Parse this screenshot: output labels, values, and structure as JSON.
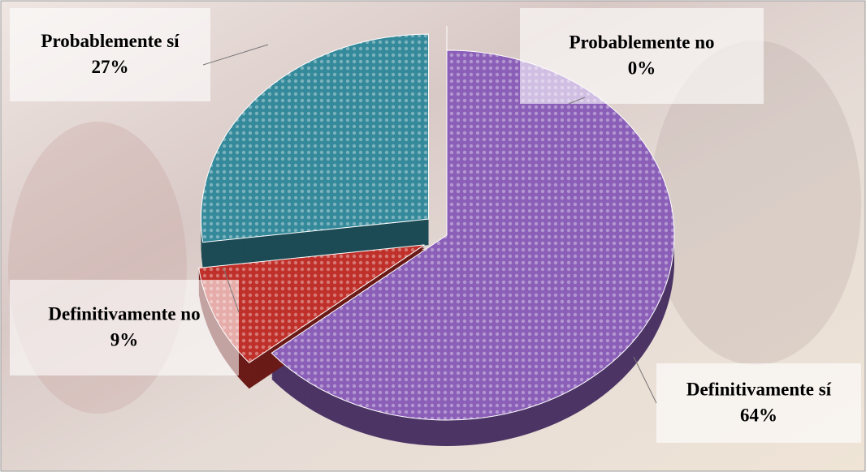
{
  "chart_data": {
    "type": "pie",
    "categories": [
      "Definitivamente sí",
      "Definitivamente no",
      "Probablemente sí",
      "Probablemente no"
    ],
    "values": [
      64,
      9,
      27,
      0
    ],
    "value_labels": [
      "64%",
      "9%",
      "27%",
      "0%"
    ],
    "colors": [
      "#8b5fb8",
      "#c0302a",
      "#34899a",
      "#9bbb59"
    ]
  }
}
